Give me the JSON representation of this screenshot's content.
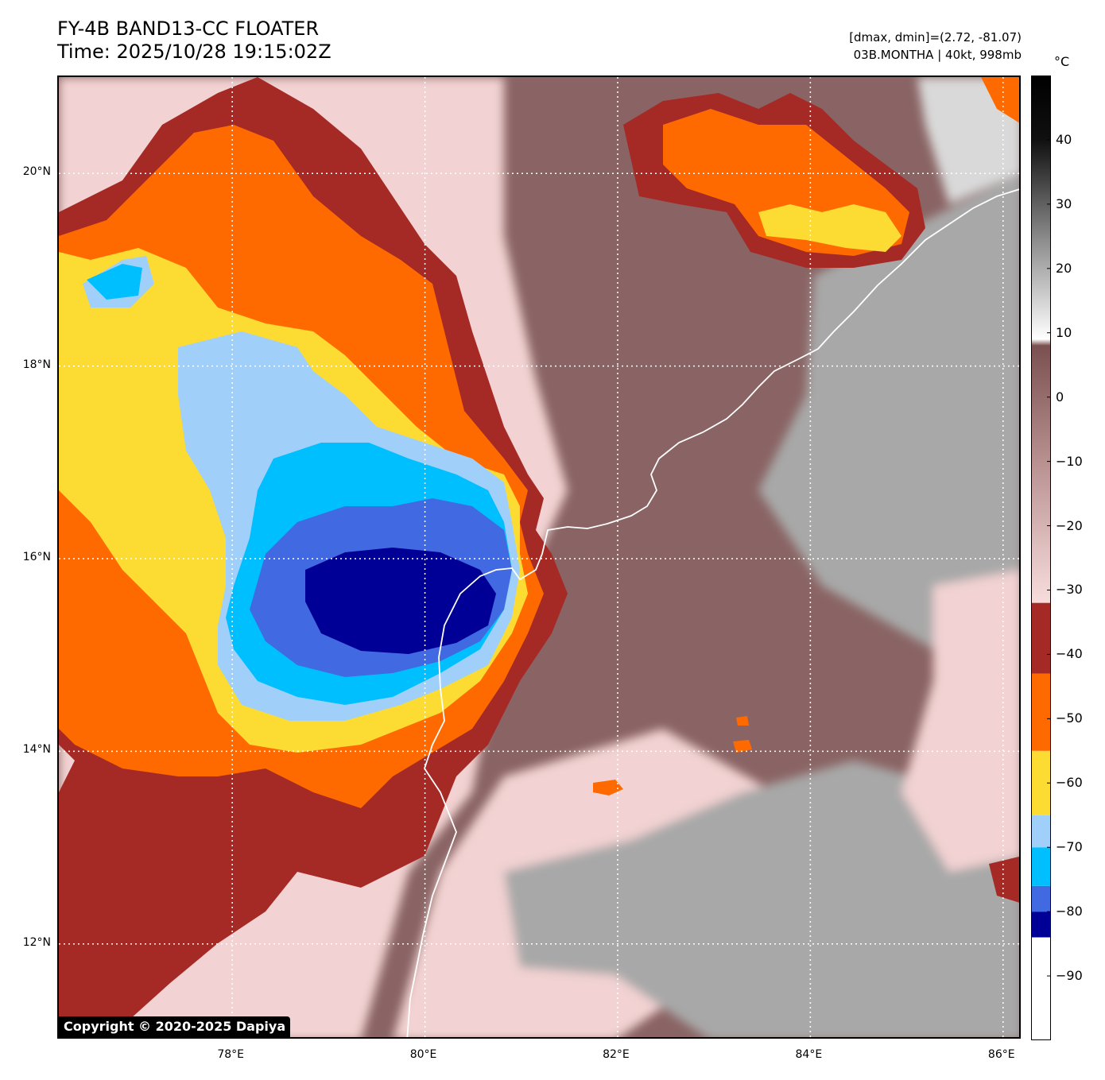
{
  "header": {
    "title_line1": "FY-4B BAND13-CC FLOATER",
    "title_line2": "Time: 2025/10/28 19:15:02Z",
    "range_info": "[dmax, dmin]=(2.72, -81.07)",
    "storm_info": "03B.MONTHA | 40kt, 998mb"
  },
  "map": {
    "lon_range": [
      76.2,
      86.2
    ],
    "lat_range": [
      11.0,
      21.0
    ],
    "lat_ticks": [
      {
        "value": 20,
        "label": "20°N"
      },
      {
        "value": 18,
        "label": "18°N"
      },
      {
        "value": 16,
        "label": "16°N"
      },
      {
        "value": 14,
        "label": "14°N"
      },
      {
        "value": 12,
        "label": "12°N"
      }
    ],
    "lon_ticks": [
      {
        "value": 78,
        "label": "78°E"
      },
      {
        "value": 80,
        "label": "80°E"
      },
      {
        "value": 82,
        "label": "82°E"
      },
      {
        "value": 84,
        "label": "84°E"
      },
      {
        "value": 86,
        "label": "86°E"
      }
    ],
    "gridlines": "dotted-white",
    "copyright": "Copyright © 2020-2025 Dapiya"
  },
  "colorbar": {
    "unit": "°C",
    "range": [
      -100,
      50
    ],
    "ticks": [
      {
        "value": 40,
        "label": "40"
      },
      {
        "value": 30,
        "label": "30"
      },
      {
        "value": 20,
        "label": "20"
      },
      {
        "value": 10,
        "label": "10"
      },
      {
        "value": 0,
        "label": "0"
      },
      {
        "value": -10,
        "label": "−10"
      },
      {
        "value": -20,
        "label": "−20"
      },
      {
        "value": -30,
        "label": "−30"
      },
      {
        "value": -40,
        "label": "−40"
      },
      {
        "value": -50,
        "label": "−50"
      },
      {
        "value": -60,
        "label": "−60"
      },
      {
        "value": -70,
        "label": "−70"
      },
      {
        "value": -80,
        "label": "−80"
      },
      {
        "value": -90,
        "label": "−90"
      }
    ],
    "bands": [
      {
        "from": -100,
        "to": -84,
        "color": "#ffffff"
      },
      {
        "from": -84,
        "to": -80,
        "color": "#000096"
      },
      {
        "from": -80,
        "to": -76,
        "color": "#4169e1"
      },
      {
        "from": -76,
        "to": -70,
        "color": "#00bfff"
      },
      {
        "from": -70,
        "to": -65,
        "color": "#a0d0fa"
      },
      {
        "from": -65,
        "to": -55,
        "color": "#fcdc32"
      },
      {
        "from": -55,
        "to": -43,
        "color": "#ff6a00"
      },
      {
        "from": -43,
        "to": -32,
        "color": "#a52a26"
      }
    ],
    "gradient_stops": [
      {
        "value": -32,
        "color": "#f8dddd"
      },
      {
        "value": -10,
        "color": "#b89090"
      },
      {
        "value": 8,
        "color": "#7a5050"
      },
      {
        "value": 9,
        "color": "#ffffff"
      },
      {
        "value": 25,
        "color": "#888888"
      },
      {
        "value": 40,
        "color": "#101010"
      },
      {
        "value": 50,
        "color": "#000000"
      }
    ]
  },
  "colors": {
    "coldest": "#000096",
    "deep_blue": "#4169e1",
    "cyan": "#00bfff",
    "light_blue": "#a0d0fa",
    "yellow": "#fcdc32",
    "orange": "#ff6a00",
    "maroon": "#a52a26",
    "pink": "#f2d2d2",
    "brown": "#8a6464",
    "gray_light": "#d9d9d9",
    "gray": "#a8a8a8",
    "coastline": "#ffffff"
  }
}
